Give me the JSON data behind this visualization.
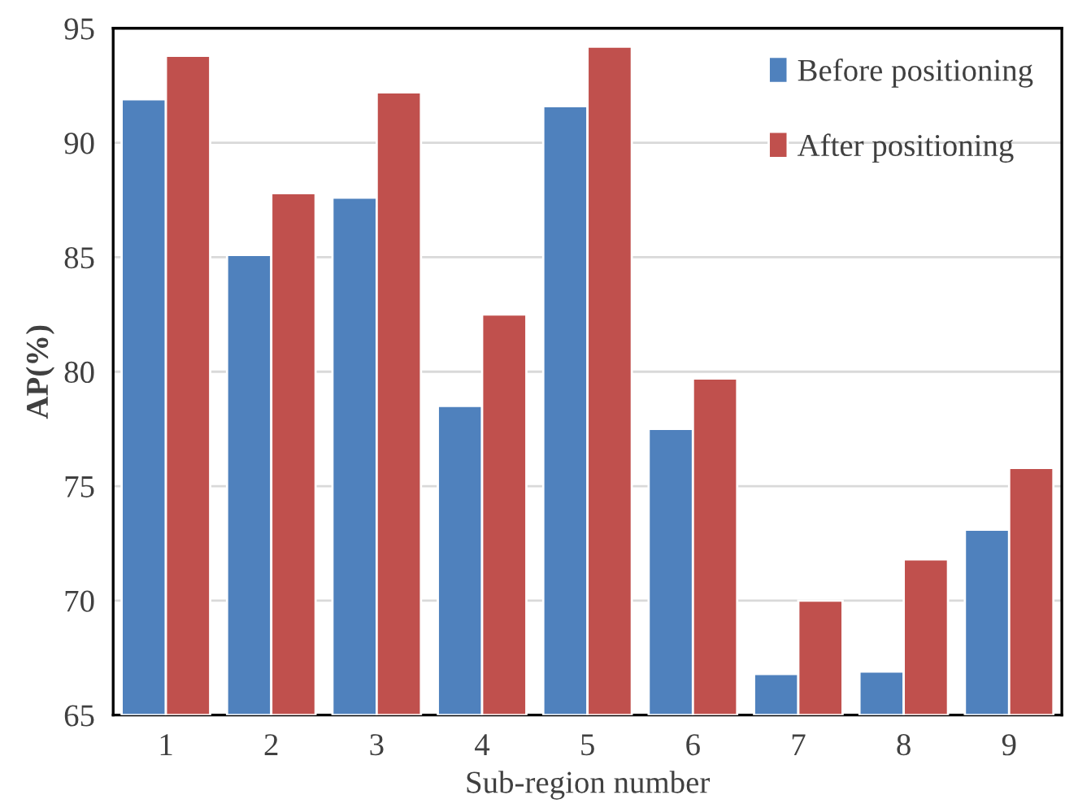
{
  "chart_data": {
    "type": "bar",
    "xlabel": "Sub-region number",
    "ylabel": "AP(%)",
    "categories": [
      "1",
      "2",
      "3",
      "4",
      "5",
      "6",
      "7",
      "8",
      "9"
    ],
    "series": [
      {
        "name": "Before positioning",
        "color": "#4f81bd",
        "values": [
          91.9,
          85.1,
          87.6,
          78.5,
          91.6,
          77.5,
          66.8,
          66.9,
          73.1
        ]
      },
      {
        "name": "After positioning",
        "color": "#c0504d",
        "values": [
          93.8,
          87.8,
          92.2,
          82.5,
          94.2,
          79.7,
          70.0,
          71.8,
          75.8
        ]
      }
    ],
    "ylim": [
      65,
      95
    ],
    "yticks": [
      65,
      70,
      75,
      80,
      85,
      90,
      95
    ],
    "grid": "y",
    "legend": "top right"
  }
}
